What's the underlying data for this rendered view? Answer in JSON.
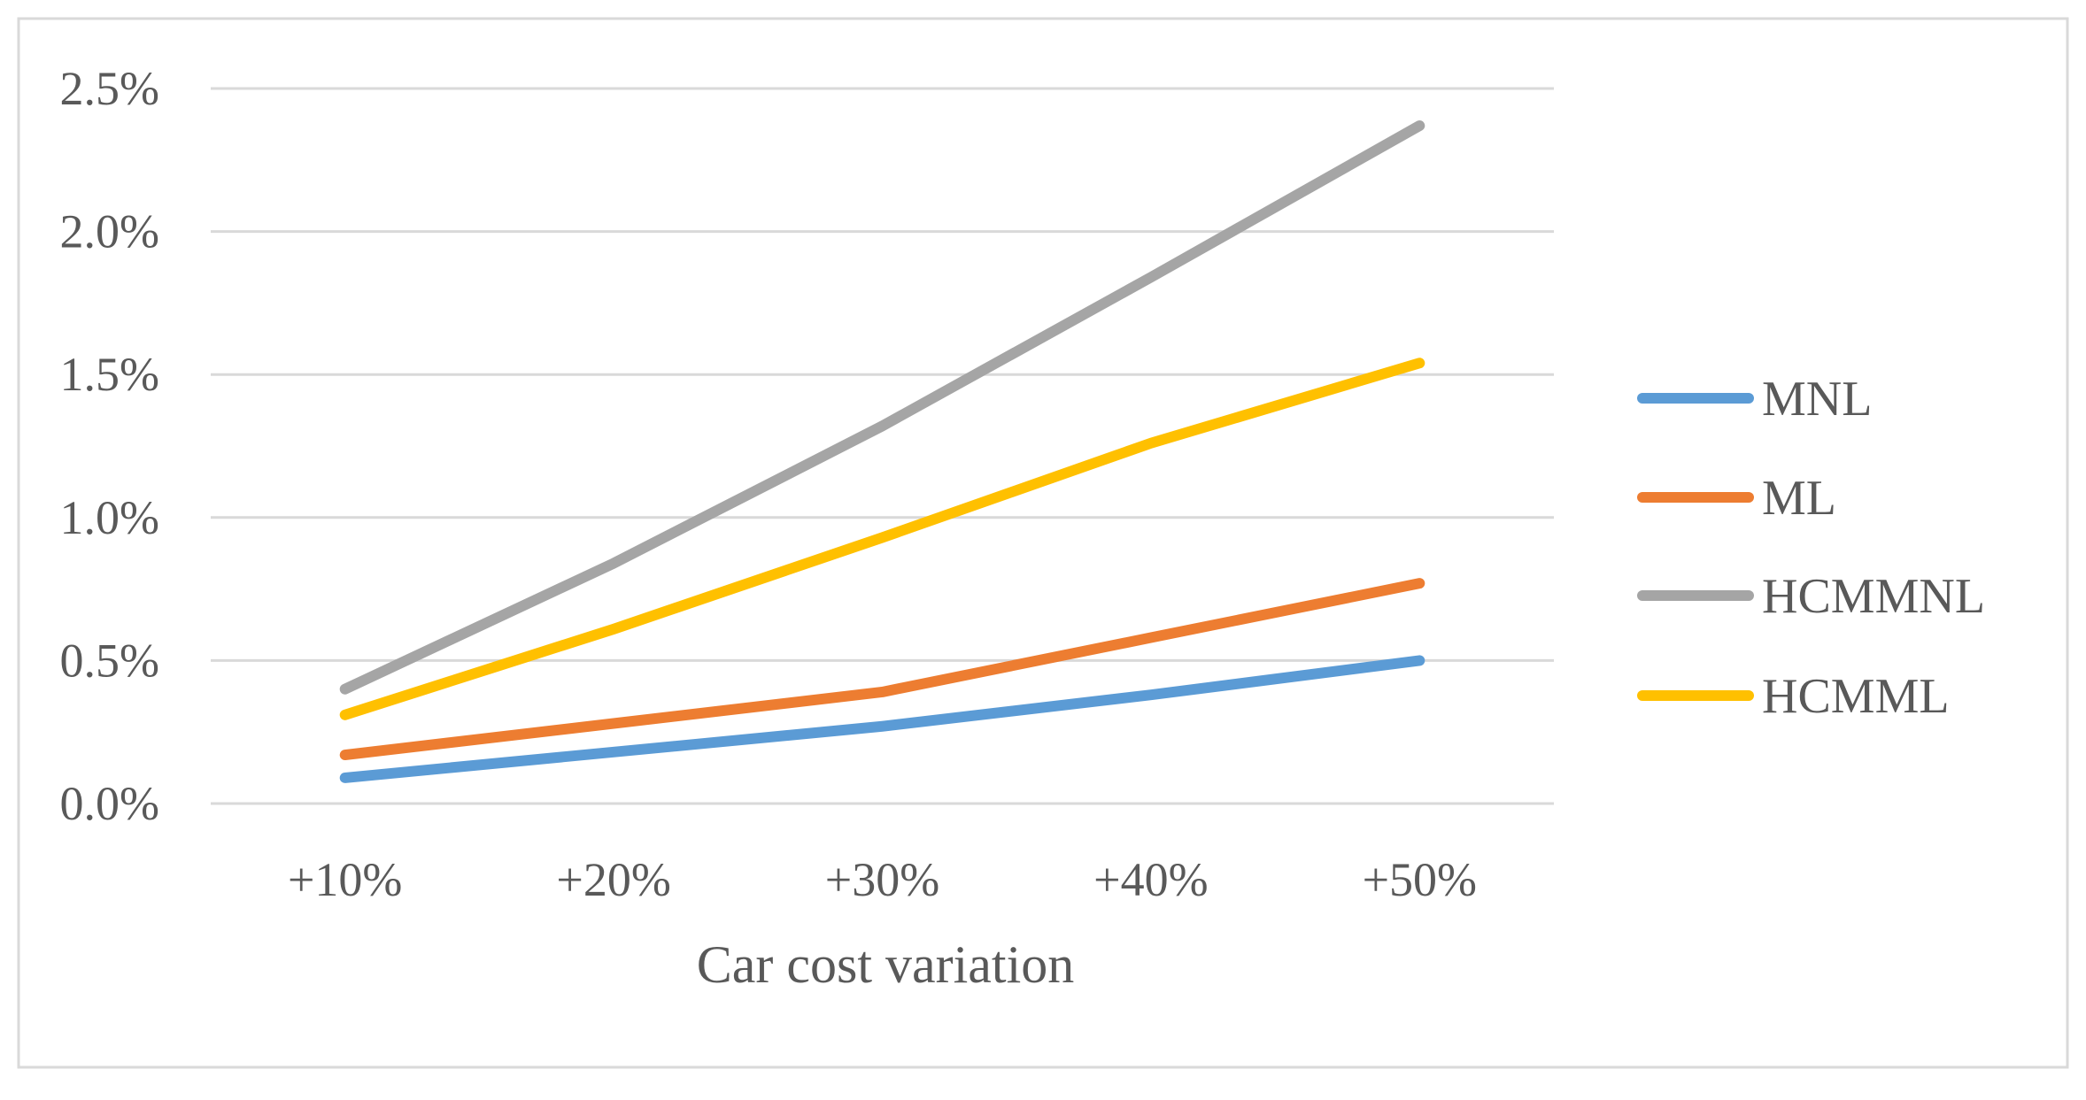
{
  "chart_data": {
    "type": "line",
    "title": "",
    "xlabel": "Car cost variation",
    "ylabel": "",
    "categories": [
      "+10%",
      "+20%",
      "+30%",
      "+40%",
      "+50%"
    ],
    "y_ticks": [
      "0.0%",
      "0.5%",
      "1.0%",
      "1.5%",
      "2.0%",
      "2.5%"
    ],
    "ylim": [
      0,
      2.5
    ],
    "grid": true,
    "legend_position": "right",
    "series": [
      {
        "name": "MNL",
        "color": "#5B9BD5",
        "values": [
          0.09,
          0.18,
          0.27,
          0.38,
          0.5
        ]
      },
      {
        "name": "ML",
        "color": "#ED7D31",
        "values": [
          0.17,
          0.28,
          0.39,
          0.58,
          0.77
        ]
      },
      {
        "name": "HCMMNL",
        "color": "#A5A5A5",
        "values": [
          0.4,
          0.84,
          1.32,
          1.84,
          2.37
        ]
      },
      {
        "name": "HCMML",
        "color": "#FFC000",
        "values": [
          0.31,
          0.61,
          0.93,
          1.26,
          1.54
        ]
      }
    ]
  }
}
